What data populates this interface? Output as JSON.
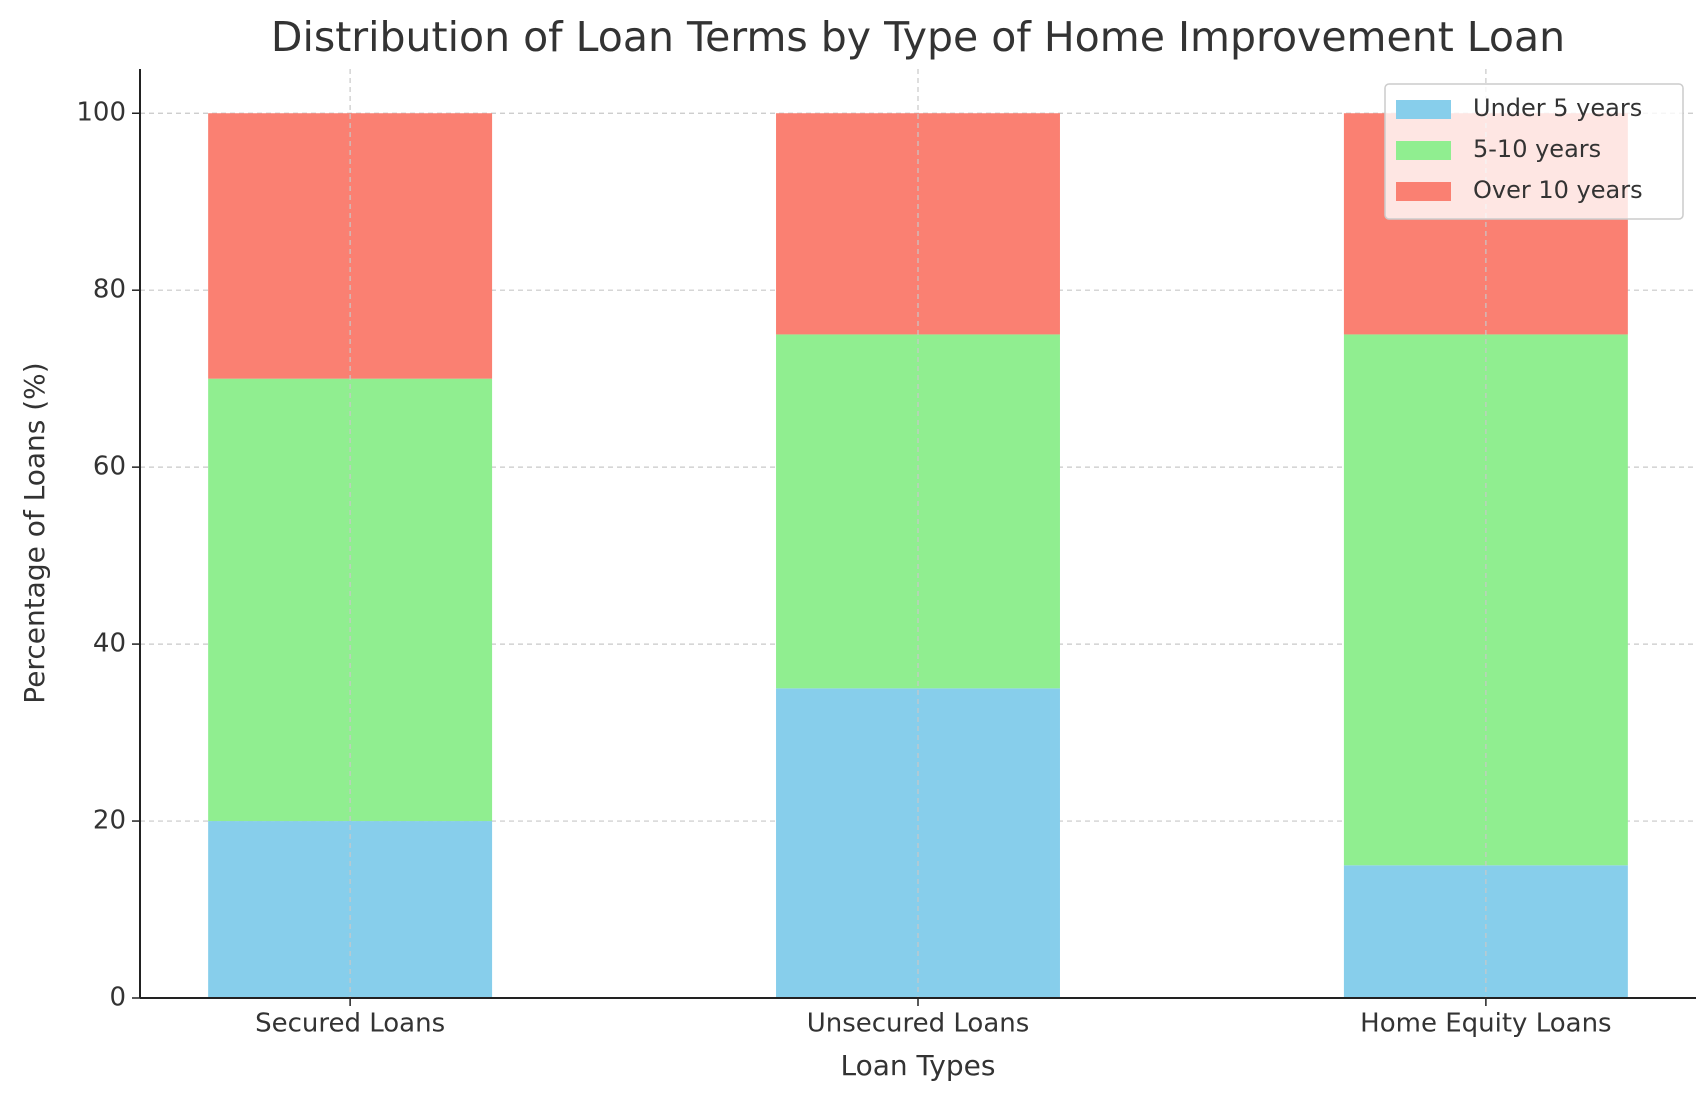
{
  "chart_data": {
    "type": "stacked_bar",
    "title": "Distribution of Loan Terms by Type of Home Improvement Loan",
    "x_label": "Loan Types",
    "y_label": "Percentage of Loans (%)",
    "categories": [
      "Secured Loans",
      "Unsecured Loans",
      "Home Equity Loans"
    ],
    "series": [
      {
        "name": "Under 5 years",
        "color": "#87ceeb",
        "values": [
          20,
          35,
          15
        ]
      },
      {
        "name": "5-10 years",
        "color": "#90ee90",
        "values": [
          50,
          40,
          60
        ]
      },
      {
        "name": "Over 10 years",
        "color": "#fa8072",
        "values": [
          30,
          25,
          25
        ]
      }
    ],
    "ylim": [
      0,
      105
    ],
    "yticks": [
      0,
      20,
      40,
      60,
      80,
      100
    ],
    "grid": true,
    "legend": "upper-right"
  }
}
